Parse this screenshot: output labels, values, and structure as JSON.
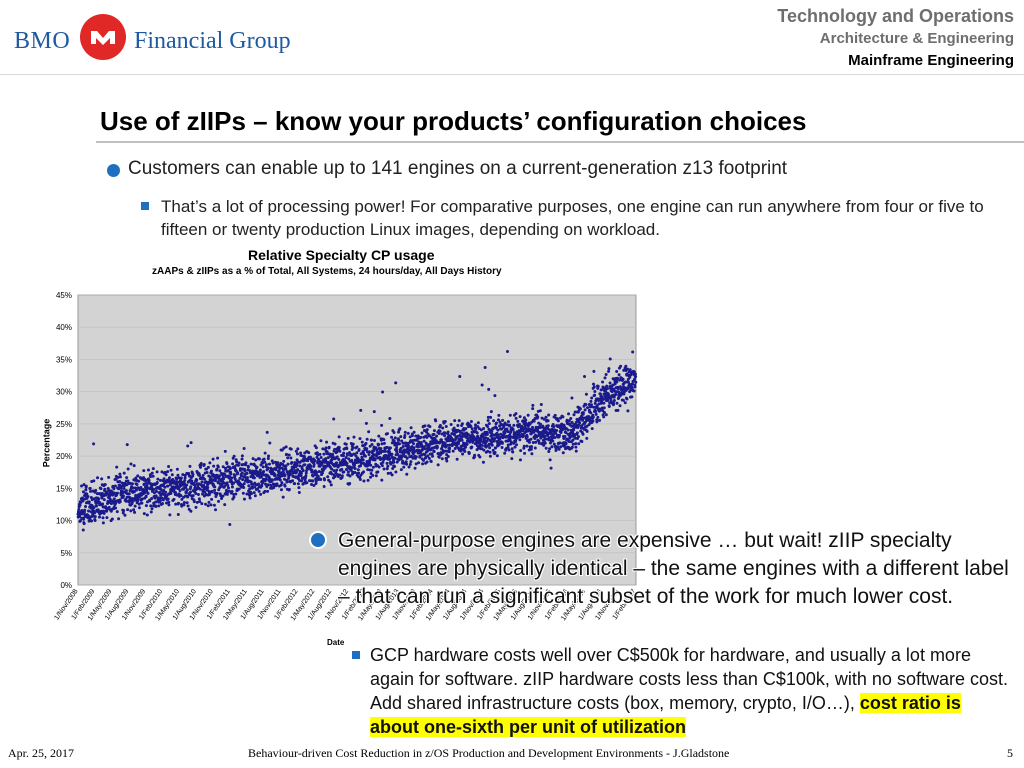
{
  "header": {
    "logo_left": "BMO",
    "logo_right": "Financial Group",
    "line1": "Technology and Operations",
    "line2": "Architecture & Engineering",
    "line3": "Mainframe Engineering"
  },
  "slide": {
    "title": "Use of zIIPs – know your products’ configuration choices",
    "bullet1": "Customers can enable up to 141 engines on a current-generation z13 footprint",
    "bullet1_sub": "That’s a lot of processing power! For comparative purposes, one engine can run anywhere from four or five to fifteen or twenty production Linux images, depending on workload.",
    "bullet2": "General-purpose engines are expensive … but wait! zIIP specialty engines are physically identical – the same engines with a different label – that can run a significant subset of the work for much lower cost.",
    "bullet2_sub_plain": "GCP hardware costs well over C$500k for hardware, and usually a lot more again for software. zIIP hardware costs less than C$100k, with no software cost. Add shared infrastructure costs (box, memory, crypto, I/O…), ",
    "bullet2_sub_highlight": "cost ratio is about one-sixth per unit of utilization"
  },
  "footer": {
    "date": "Apr. 25, 2017",
    "center": "Behaviour-driven Cost Reduction in z/OS Production and Development Environments - J.Gladstone",
    "page": "5"
  },
  "colors": {
    "accent": "#1f6fc0",
    "marker": "#1a1a8c",
    "plot_bg": "#d3d3d3",
    "highlight": "#ffff00",
    "logo_red": "#e02826",
    "logo_blue": "#1f5aa0"
  },
  "chart_data": {
    "type": "scatter",
    "title": "Relative Specialty  CP usage",
    "subtitle": "zAAPs & zIIPs as a %  of Total, All Systems, 24 hours/day, All Days History",
    "ylabel": "Percentage",
    "xlabel": "Date",
    "ylim": [
      0,
      45
    ],
    "yticks": [
      "0%",
      "5%",
      "10%",
      "15%",
      "20%",
      "25%",
      "30%",
      "35%",
      "40%",
      "45%"
    ],
    "xticks": [
      "1/Nov/2008",
      "1/Feb/2009",
      "1/May/2009",
      "1/Aug/2009",
      "1/Nov/2009",
      "1/Feb/2010",
      "1/May/2010",
      "1/Aug/2010",
      "1/Nov/2010",
      "1/Feb/2011",
      "1/May/2011",
      "1/Aug/2011",
      "1/Nov/2011",
      "1/Feb/2012",
      "1/May/2012",
      "1/Aug/2012",
      "1/Nov/2012",
      "1/Feb/2013",
      "1/May/2013",
      "1/Aug/2013",
      "1/Nov/2013",
      "1/Feb/2014",
      "1/May/2014",
      "1/Aug/2014",
      "1/Nov/2014",
      "1/Feb/2015",
      "1/May/2015",
      "1/Aug/2015",
      "1/Nov/2015",
      "1/Feb/2016",
      "1/May/2016",
      "1/Aug/2016",
      "1/Nov/2016",
      "1/Feb/2017"
    ],
    "grid": true,
    "trend": {
      "x": [
        "1/Nov/2008",
        "1/Aug/2009",
        "1/May/2010",
        "1/Feb/2011",
        "1/Nov/2011",
        "1/Aug/2012",
        "1/May/2013",
        "1/Feb/2014",
        "1/Nov/2014",
        "1/Aug/2015",
        "1/Feb/2016",
        "1/Aug/2016",
        "1/Feb/2017"
      ],
      "y": [
        12,
        14.5,
        15,
        16.5,
        17.5,
        19,
        20,
        22,
        23,
        24,
        23,
        29,
        32
      ]
    },
    "spread": 2.2,
    "points_per_month": 30
  }
}
